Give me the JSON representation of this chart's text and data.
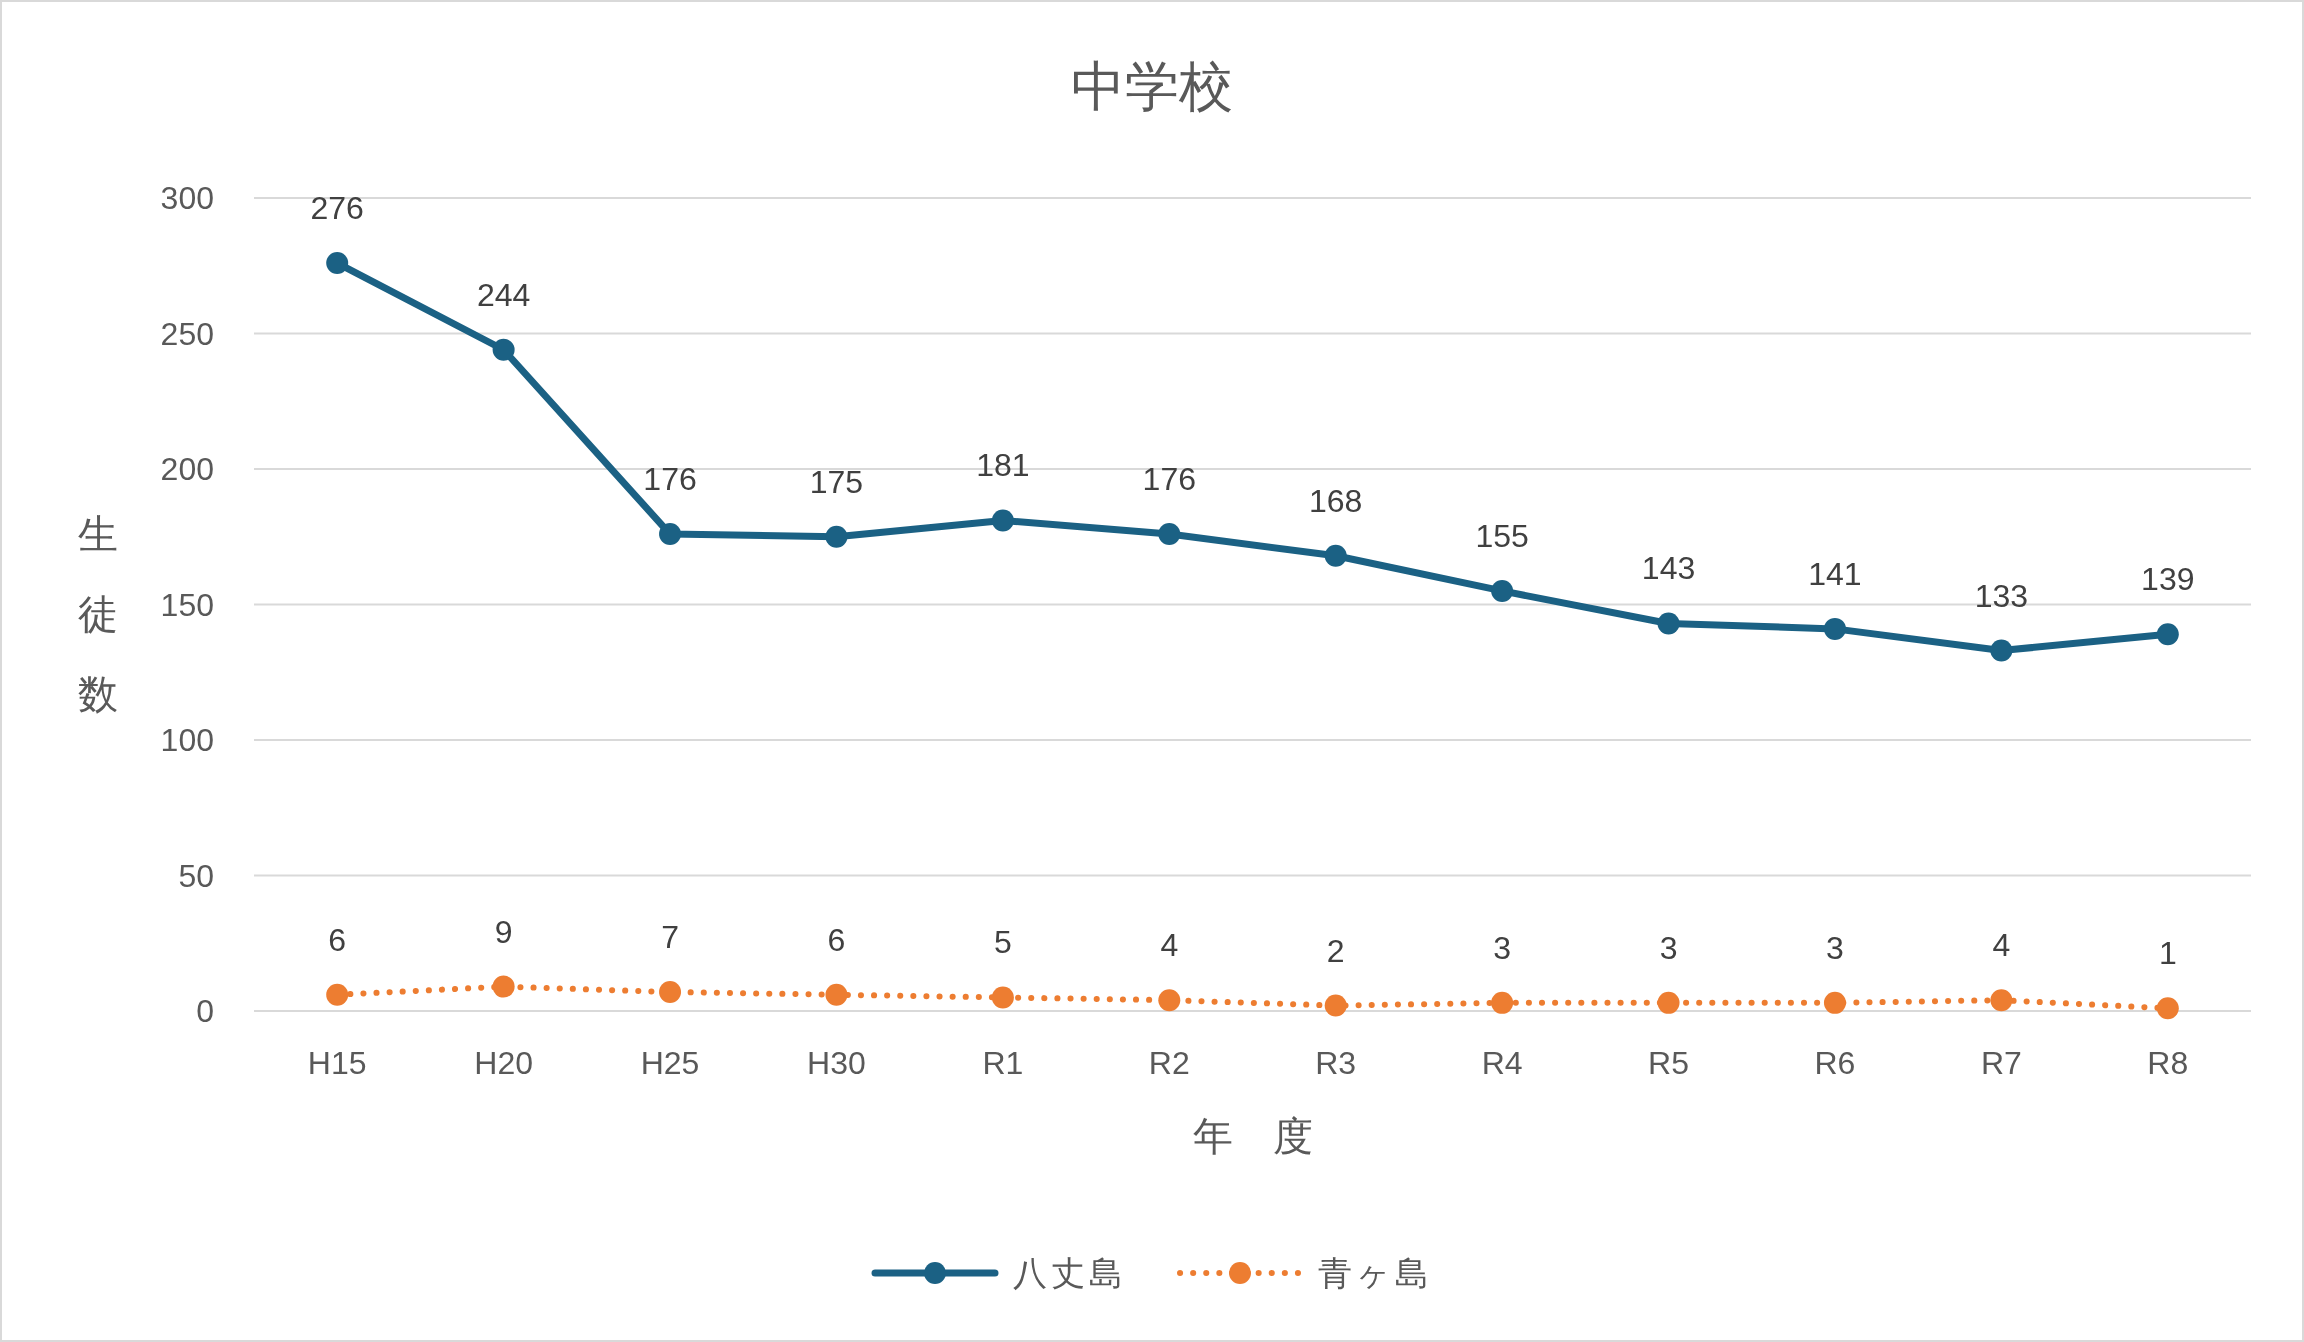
{
  "chart_data": {
    "type": "line",
    "title": "中学校",
    "xlabel": "年　度",
    "ylabel": "生徒数",
    "categories": [
      "H15",
      "H20",
      "H25",
      "H30",
      "R1",
      "R2",
      "R3",
      "R4",
      "R5",
      "R6",
      "R7",
      "R8"
    ],
    "series": [
      {
        "name": "八丈島",
        "color": "#1b6184",
        "line_style": "solid",
        "values": [
          276,
          244,
          176,
          175,
          181,
          176,
          168,
          155,
          143,
          141,
          133,
          139
        ]
      },
      {
        "name": "青ヶ島",
        "color": "#ed7d31",
        "line_style": "dotted",
        "values": [
          6,
          9,
          7,
          6,
          5,
          4,
          2,
          3,
          3,
          3,
          4,
          1
        ]
      }
    ],
    "ylim": [
      0,
      300
    ],
    "yticks": [
      0,
      50,
      100,
      150,
      200,
      250,
      300
    ],
    "grid": "y",
    "legend": "bottom",
    "marker": "circle",
    "data_labels": true
  }
}
